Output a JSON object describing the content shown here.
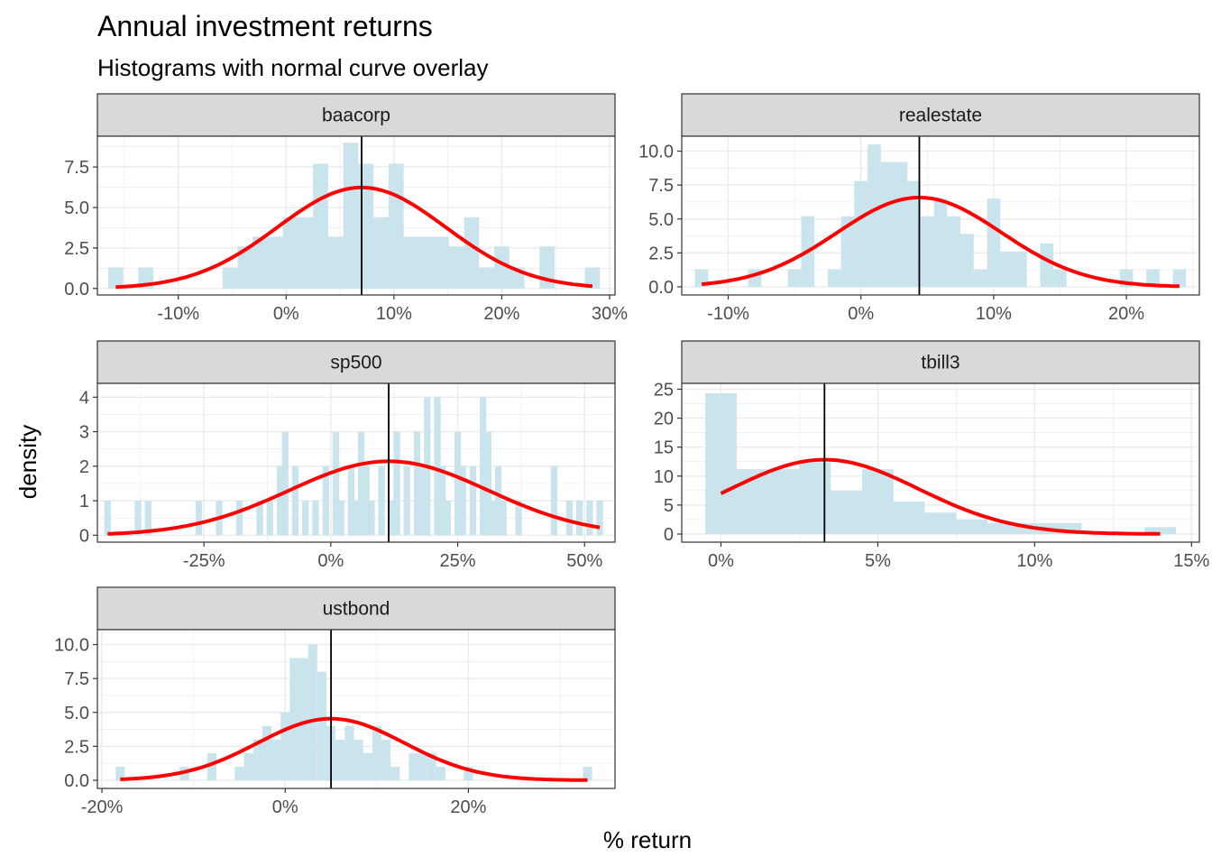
{
  "chart": {
    "title": "Annual investment returns",
    "subtitle": "Histograms with normal curve overlay",
    "xlabel": "% return",
    "ylabel": "density",
    "colors": {
      "bars": "#c7e3ec",
      "curve": "#ff0000",
      "mean_line": "#000000",
      "strip_bg": "#d9d9d9",
      "grid": "#ebebeb",
      "panel_border": "#333333"
    }
  },
  "chart_data": [
    {
      "type": "bar",
      "panel": "baacorp",
      "mean": 7.0,
      "sd": 7.8,
      "bin_width": 1.4,
      "bins": [
        {
          "x": -15.8,
          "y": 1.3
        },
        {
          "x": -13.0,
          "y": 1.3
        },
        {
          "x": -5.2,
          "y": 1.3
        },
        {
          "x": -3.8,
          "y": 2.6
        },
        {
          "x": -2.4,
          "y": 3.2
        },
        {
          "x": -1.0,
          "y": 3.2
        },
        {
          "x": 0.4,
          "y": 4.4
        },
        {
          "x": 1.8,
          "y": 4.4
        },
        {
          "x": 3.2,
          "y": 7.7
        },
        {
          "x": 4.6,
          "y": 3.2
        },
        {
          "x": 6.0,
          "y": 9.0
        },
        {
          "x": 7.4,
          "y": 7.7
        },
        {
          "x": 8.8,
          "y": 4.4
        },
        {
          "x": 10.2,
          "y": 7.7
        },
        {
          "x": 11.6,
          "y": 3.2
        },
        {
          "x": 13.0,
          "y": 3.2
        },
        {
          "x": 14.4,
          "y": 3.2
        },
        {
          "x": 15.8,
          "y": 2.6
        },
        {
          "x": 17.2,
          "y": 4.4
        },
        {
          "x": 18.6,
          "y": 1.3
        },
        {
          "x": 20.0,
          "y": 2.6
        },
        {
          "x": 21.4,
          "y": 1.3
        },
        {
          "x": 24.2,
          "y": 2.6
        },
        {
          "x": 28.4,
          "y": 1.3
        }
      ],
      "xlim": [
        -17.5,
        30.5
      ],
      "ylim": [
        -0.4,
        9.4
      ],
      "xticks": [
        -10,
        0,
        10,
        20,
        30
      ],
      "xtick_labels": [
        "-10%",
        "0%",
        "10%",
        "20%",
        "30%"
      ],
      "yticks": [
        0,
        2.5,
        5,
        7.5
      ],
      "ytick_labels": [
        "0.0",
        "2.5",
        "5.0",
        "7.5"
      ]
    },
    {
      "type": "bar",
      "panel": "realestate",
      "mean": 4.4,
      "sd": 6.2,
      "bin_width": 1.0,
      "bins": [
        {
          "x": -12.0,
          "y": 1.3
        },
        {
          "x": -8.0,
          "y": 1.3
        },
        {
          "x": -5.0,
          "y": 1.3
        },
        {
          "x": -4.0,
          "y": 5.2
        },
        {
          "x": -2.0,
          "y": 1.3
        },
        {
          "x": -1.0,
          "y": 5.2
        },
        {
          "x": 0.0,
          "y": 7.8
        },
        {
          "x": 1.0,
          "y": 10.5
        },
        {
          "x": 2.0,
          "y": 9.2
        },
        {
          "x": 3.0,
          "y": 9.2
        },
        {
          "x": 4.0,
          "y": 7.8
        },
        {
          "x": 5.0,
          "y": 5.2
        },
        {
          "x": 6.0,
          "y": 6.5
        },
        {
          "x": 7.0,
          "y": 5.2
        },
        {
          "x": 8.0,
          "y": 3.9
        },
        {
          "x": 9.0,
          "y": 1.3
        },
        {
          "x": 10.0,
          "y": 6.5
        },
        {
          "x": 11.0,
          "y": 2.6
        },
        {
          "x": 12.0,
          "y": 2.6
        },
        {
          "x": 14.0,
          "y": 3.2
        },
        {
          "x": 15.0,
          "y": 1.3
        },
        {
          "x": 20.0,
          "y": 1.3
        },
        {
          "x": 22.0,
          "y": 1.3
        },
        {
          "x": 24.0,
          "y": 1.3
        }
      ],
      "xlim": [
        -13.5,
        25.5
      ],
      "ylim": [
        -0.6,
        11.1
      ],
      "xticks": [
        -10,
        0,
        10,
        20
      ],
      "xtick_labels": [
        "-10%",
        "0%",
        "10%",
        "20%"
      ],
      "yticks": [
        0,
        2.5,
        5,
        7.5,
        10
      ],
      "ytick_labels": [
        "0.0",
        "2.5",
        "5.0",
        "7.5",
        "10.0"
      ]
    },
    {
      "type": "bar",
      "panel": "sp500",
      "mean": 11.4,
      "sd": 19.6,
      "bin_width": 1.3,
      "bins": [
        {
          "x": -44.0,
          "y": 1.0
        },
        {
          "x": -38.0,
          "y": 1.0
        },
        {
          "x": -36.0,
          "y": 1.0
        },
        {
          "x": -26.0,
          "y": 1.0
        },
        {
          "x": -22.0,
          "y": 1.0
        },
        {
          "x": -18.0,
          "y": 1.0
        },
        {
          "x": -14.0,
          "y": 1.0
        },
        {
          "x": -12.0,
          "y": 1.0
        },
        {
          "x": -10.0,
          "y": 2.0
        },
        {
          "x": -9.0,
          "y": 3.0
        },
        {
          "x": -7.0,
          "y": 2.0
        },
        {
          "x": -5.0,
          "y": 1.0
        },
        {
          "x": -3.0,
          "y": 1.0
        },
        {
          "x": -1.0,
          "y": 2.0
        },
        {
          "x": 1.0,
          "y": 3.0
        },
        {
          "x": 2.0,
          "y": 1.0
        },
        {
          "x": 4.0,
          "y": 2.0
        },
        {
          "x": 5.0,
          "y": 1.0
        },
        {
          "x": 6.0,
          "y": 3.0
        },
        {
          "x": 7.0,
          "y": 2.0
        },
        {
          "x": 8.0,
          "y": 1.0
        },
        {
          "x": 10.0,
          "y": 2.0
        },
        {
          "x": 12.0,
          "y": 1.0
        },
        {
          "x": 13.0,
          "y": 3.0
        },
        {
          "x": 15.0,
          "y": 2.0
        },
        {
          "x": 17.0,
          "y": 3.0
        },
        {
          "x": 18.0,
          "y": 2.0
        },
        {
          "x": 19.0,
          "y": 4.0
        },
        {
          "x": 21.0,
          "y": 4.0
        },
        {
          "x": 22.0,
          "y": 2.0
        },
        {
          "x": 23.0,
          "y": 1.0
        },
        {
          "x": 25.0,
          "y": 3.0
        },
        {
          "x": 26.0,
          "y": 2.0
        },
        {
          "x": 28.0,
          "y": 2.0
        },
        {
          "x": 30.0,
          "y": 4.0
        },
        {
          "x": 31.0,
          "y": 3.0
        },
        {
          "x": 32.0,
          "y": 1.0
        },
        {
          "x": 33.0,
          "y": 2.0
        },
        {
          "x": 34.0,
          "y": 1.0
        },
        {
          "x": 37.0,
          "y": 1.0
        },
        {
          "x": 44.0,
          "y": 2.0
        },
        {
          "x": 47.0,
          "y": 1.0
        },
        {
          "x": 49.0,
          "y": 1.0
        },
        {
          "x": 51.0,
          "y": 1.0
        },
        {
          "x": 53.0,
          "y": 1.0
        }
      ],
      "xlim": [
        -46.0,
        56.0
      ],
      "ylim": [
        -0.2,
        4.4
      ],
      "xticks": [
        -25,
        0,
        25,
        50
      ],
      "xtick_labels": [
        "-25%",
        "0%",
        "25%",
        "50%"
      ],
      "yticks": [
        0,
        1,
        2,
        3,
        4
      ],
      "ytick_labels": [
        "0",
        "1",
        "2",
        "3",
        "4"
      ]
    },
    {
      "type": "bar",
      "panel": "tbill3",
      "mean": 3.3,
      "sd": 3.0,
      "bin_width": 1.0,
      "bins": [
        {
          "x": 0.0,
          "y": 24.3
        },
        {
          "x": 1.0,
          "y": 11.2
        },
        {
          "x": 2.0,
          "y": 11.2
        },
        {
          "x": 3.0,
          "y": 12.4
        },
        {
          "x": 4.0,
          "y": 7.5
        },
        {
          "x": 5.0,
          "y": 11.2
        },
        {
          "x": 6.0,
          "y": 5.6
        },
        {
          "x": 7.0,
          "y": 3.7
        },
        {
          "x": 8.0,
          "y": 2.5
        },
        {
          "x": 9.0,
          "y": 1.9
        },
        {
          "x": 10.0,
          "y": 1.9
        },
        {
          "x": 11.0,
          "y": 1.9
        },
        {
          "x": 14.0,
          "y": 1.2
        }
      ],
      "xlim": [
        -1.25,
        15.25
      ],
      "ylim": [
        -1.4,
        26.0
      ],
      "xticks": [
        0,
        5,
        10,
        15
      ],
      "xtick_labels": [
        "0%",
        "5%",
        "10%",
        "15%"
      ],
      "yticks": [
        0,
        5,
        10,
        15,
        20,
        25
      ],
      "ytick_labels": [
        "0",
        "5",
        "10",
        "15",
        "20",
        "25"
      ]
    },
    {
      "type": "bar",
      "panel": "ustbond",
      "mean": 5.0,
      "sd": 8.0,
      "bin_width": 1.0,
      "bins": [
        {
          "x": -18.0,
          "y": 1.0
        },
        {
          "x": -11.0,
          "y": 1.0
        },
        {
          "x": -8.0,
          "y": 2.0
        },
        {
          "x": -5.0,
          "y": 1.0
        },
        {
          "x": -4.0,
          "y": 2.0
        },
        {
          "x": -3.0,
          "y": 3.0
        },
        {
          "x": -2.0,
          "y": 4.0
        },
        {
          "x": -1.0,
          "y": 3.0
        },
        {
          "x": 0.0,
          "y": 5.0
        },
        {
          "x": 1.0,
          "y": 9.0
        },
        {
          "x": 2.0,
          "y": 9.0
        },
        {
          "x": 3.0,
          "y": 10.0
        },
        {
          "x": 4.0,
          "y": 8.0
        },
        {
          "x": 5.0,
          "y": 4.0
        },
        {
          "x": 6.0,
          "y": 3.0
        },
        {
          "x": 7.0,
          "y": 4.0
        },
        {
          "x": 8.0,
          "y": 3.0
        },
        {
          "x": 9.0,
          "y": 2.0
        },
        {
          "x": 10.0,
          "y": 4.0
        },
        {
          "x": 11.0,
          "y": 3.0
        },
        {
          "x": 12.0,
          "y": 1.0
        },
        {
          "x": 14.0,
          "y": 2.0
        },
        {
          "x": 15.0,
          "y": 2.0
        },
        {
          "x": 16.0,
          "y": 2.0
        },
        {
          "x": 17.0,
          "y": 1.0
        },
        {
          "x": 20.0,
          "y": 1.0
        },
        {
          "x": 33.0,
          "y": 1.0
        }
      ],
      "xlim": [
        -20.5,
        36.0
      ],
      "ylim": [
        -0.6,
        11.1
      ],
      "xticks": [
        -20,
        0,
        20
      ],
      "xtick_labels": [
        "-20%",
        "0%",
        "20%"
      ],
      "yticks": [
        0,
        2.5,
        5,
        7.5,
        10
      ],
      "ytick_labels": [
        "0.0",
        "2.5",
        "5.0",
        "7.5",
        "10.0"
      ]
    }
  ]
}
